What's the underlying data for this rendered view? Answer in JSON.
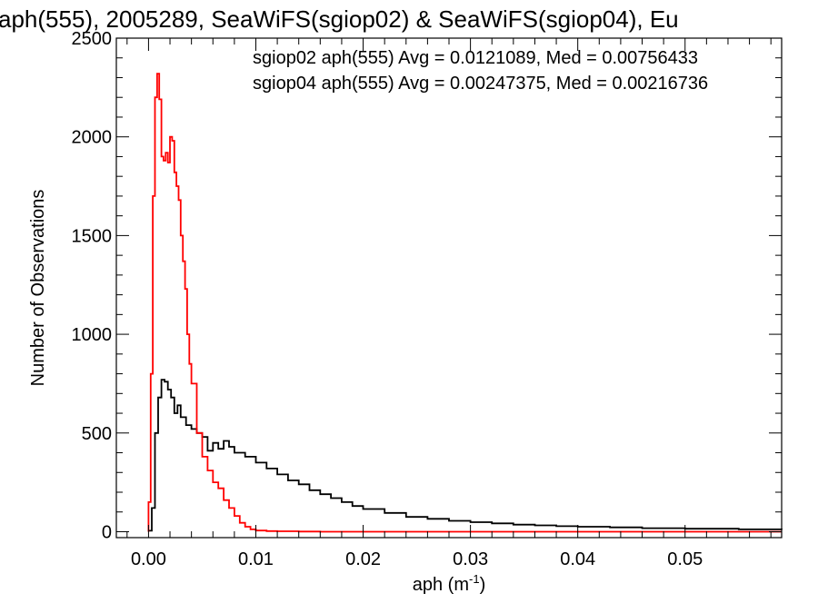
{
  "chart_data": {
    "type": "line",
    "title": "aph(555), 2005289, SeaWiFS(sgiop02) & SeaWiFS(sgiop04), Eu",
    "xlabel_base": "aph (m",
    "xlabel_sup": "-1",
    "xlabel_close": ")",
    "ylabel": "Number of Observations",
    "xlim": [
      -0.003,
      0.059
    ],
    "ylim": [
      -30,
      2500
    ],
    "x_ticks": [
      0.0,
      0.01,
      0.02,
      0.03,
      0.04,
      0.05
    ],
    "x_tick_labels": [
      "0.00",
      "0.01",
      "0.02",
      "0.03",
      "0.04",
      "0.05"
    ],
    "y_ticks": [
      0,
      500,
      1000,
      1500,
      2000,
      2500
    ],
    "y_tick_labels": [
      "0",
      "500",
      "1000",
      "1500",
      "2000",
      "2500"
    ],
    "grid": false,
    "legend_position": "top-right",
    "series": [
      {
        "name": "sgiop02 aph(555) Avg = 0.0121089, Med = 0.00756433",
        "color": "#000000",
        "x": [
          0.0,
          0.0003,
          0.0006,
          0.0009,
          0.0012,
          0.0015,
          0.0018,
          0.0021,
          0.0024,
          0.0027,
          0.003,
          0.0035,
          0.004,
          0.0045,
          0.005,
          0.0055,
          0.006,
          0.0065,
          0.007,
          0.0075,
          0.008,
          0.009,
          0.01,
          0.011,
          0.012,
          0.013,
          0.014,
          0.015,
          0.016,
          0.017,
          0.018,
          0.019,
          0.02,
          0.022,
          0.024,
          0.026,
          0.028,
          0.03,
          0.032,
          0.034,
          0.036,
          0.038,
          0.04,
          0.043,
          0.046,
          0.05,
          0.055,
          0.059
        ],
        "y": [
          5,
          120,
          500,
          680,
          770,
          760,
          720,
          680,
          600,
          640,
          580,
          540,
          520,
          500,
          480,
          410,
          450,
          420,
          460,
          430,
          400,
          380,
          350,
          320,
          290,
          260,
          240,
          210,
          190,
          170,
          150,
          130,
          115,
          95,
          75,
          65,
          55,
          48,
          42,
          36,
          32,
          28,
          25,
          22,
          18,
          15,
          12,
          10
        ]
      },
      {
        "name": "sgiop04 aph(555) Avg = 0.00247375, Med = 0.00216736",
        "color": "#ff0000",
        "x": [
          0.0,
          0.0002,
          0.0004,
          0.0006,
          0.0008,
          0.001,
          0.0012,
          0.0014,
          0.0016,
          0.0018,
          0.002,
          0.0022,
          0.0024,
          0.0026,
          0.0028,
          0.003,
          0.0032,
          0.0034,
          0.0036,
          0.0038,
          0.004,
          0.0045,
          0.005,
          0.0055,
          0.006,
          0.0065,
          0.007,
          0.0075,
          0.008,
          0.0085,
          0.009,
          0.0095,
          0.01,
          0.011,
          0.012,
          0.014,
          0.016,
          0.02,
          0.03,
          0.059
        ],
        "y": [
          150,
          800,
          1700,
          2200,
          2320,
          2190,
          1900,
          1880,
          1920,
          1870,
          2000,
          1980,
          1820,
          1750,
          1680,
          1500,
          1370,
          1230,
          1000,
          850,
          750,
          500,
          380,
          310,
          250,
          220,
          160,
          120,
          80,
          45,
          25,
          12,
          6,
          3,
          2,
          1,
          0,
          0,
          0,
          0
        ]
      }
    ]
  }
}
